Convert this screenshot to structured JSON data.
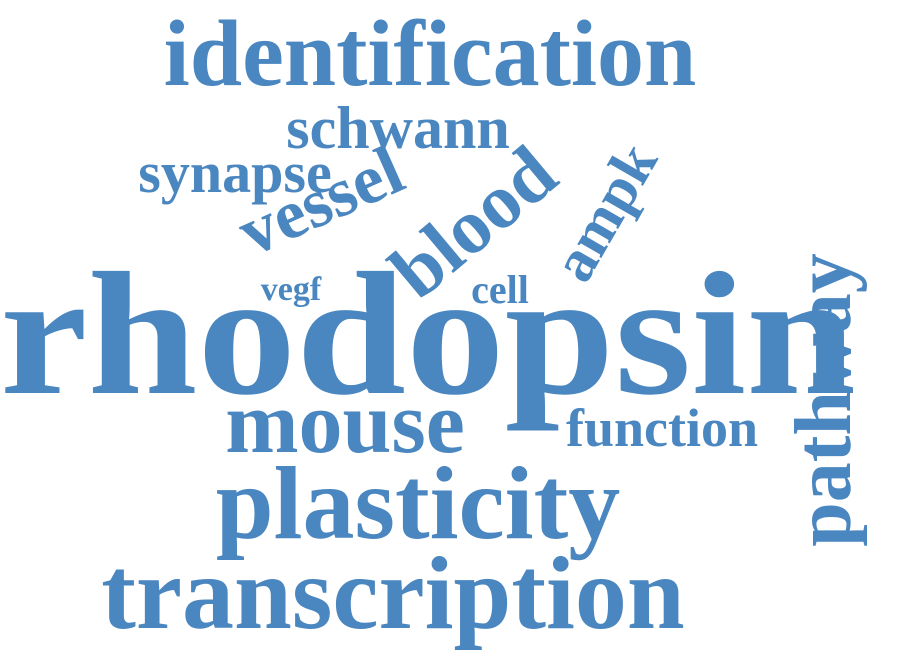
{
  "word_cloud": {
    "color": "#4a86bf",
    "words": {
      "identification": "identification",
      "schwann": "schwann",
      "synapse": "synapse",
      "vessel": "vessel",
      "blood": "blood",
      "ampk": "ampk",
      "vegf": "vegf",
      "cell": "cell",
      "rhodopsin": "rhodopsin",
      "pathway": "pathway",
      "mouse": "mouse",
      "function": "function",
      "plasticity": "plasticity",
      "transcription": "transcription"
    }
  }
}
